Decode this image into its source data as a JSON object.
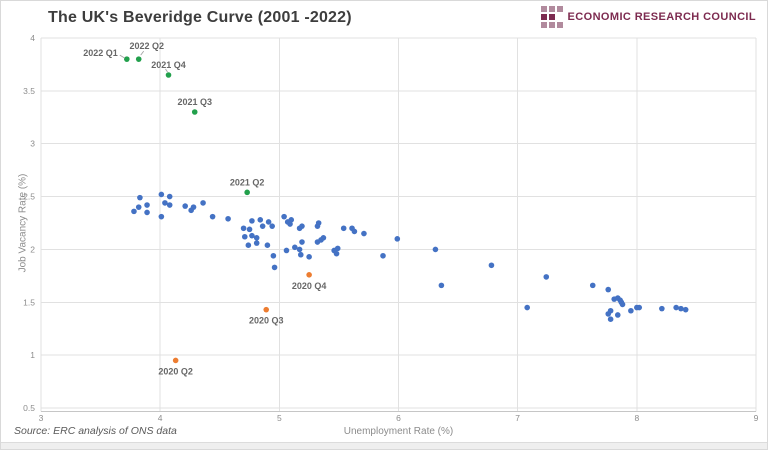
{
  "header": {
    "title": "The UK's Beveridge Curve (2001 -2022)",
    "logo_text": "ECONOMIC RESEARCH COUNCIL"
  },
  "source_note": "Source: ERC analysis of ONS data",
  "colors": {
    "blue": "#4472C4",
    "orange": "#ED7D31",
    "green": "#22A04C",
    "maroon": "#7D2B50",
    "grid": "#E1E1E1",
    "tick_text": "#8C8C8C",
    "title_text": "#3D3D3D"
  },
  "chart_data": {
    "type": "scatter",
    "title": "The UK's Beveridge Curve (2001 -2022)",
    "xlabel": "Unemployment Rate (%)",
    "ylabel": "Job Vacancy Rate (%)",
    "xlim": [
      3,
      9
    ],
    "ylim": [
      0.5,
      4
    ],
    "x_ticks": [
      3,
      4,
      5,
      6,
      7,
      8,
      9
    ],
    "y_ticks": [
      0.5,
      1,
      1.5,
      2,
      2.5,
      3,
      3.5,
      4
    ],
    "grid": true,
    "legend": false,
    "series": [
      {
        "name": "unlabeled-quarters",
        "color": "#4472C4",
        "marker_radius": 2.8,
        "points": [
          [
            3.83,
            2.49
          ],
          [
            4.01,
            2.52
          ],
          [
            4.08,
            2.5
          ],
          [
            4.04,
            2.44
          ],
          [
            4.08,
            2.42
          ],
          [
            3.82,
            2.4
          ],
          [
            3.89,
            2.42
          ],
          [
            3.78,
            2.36
          ],
          [
            3.89,
            2.35
          ],
          [
            4.21,
            2.41
          ],
          [
            4.28,
            2.4
          ],
          [
            4.36,
            2.44
          ],
          [
            4.26,
            2.37
          ],
          [
            4.01,
            2.31
          ],
          [
            4.44,
            2.31
          ],
          [
            4.57,
            2.29
          ],
          [
            4.77,
            2.27
          ],
          [
            4.84,
            2.28
          ],
          [
            4.91,
            2.26
          ],
          [
            4.7,
            2.2
          ],
          [
            4.75,
            2.19
          ],
          [
            4.86,
            2.22
          ],
          [
            4.94,
            2.22
          ],
          [
            4.71,
            2.12
          ],
          [
            4.77,
            2.13
          ],
          [
            4.81,
            2.11
          ],
          [
            4.74,
            2.04
          ],
          [
            4.81,
            2.06
          ],
          [
            4.9,
            2.04
          ],
          [
            4.95,
            1.94
          ],
          [
            5.04,
            2.31
          ],
          [
            5.07,
            2.26
          ],
          [
            5.1,
            2.28
          ],
          [
            5.09,
            2.24
          ],
          [
            5.17,
            2.2
          ],
          [
            5.19,
            2.22
          ],
          [
            5.06,
            1.99
          ],
          [
            5.13,
            2.02
          ],
          [
            5.19,
            2.07
          ],
          [
            5.17,
            2.0
          ],
          [
            5.18,
            1.95
          ],
          [
            5.25,
            1.93
          ],
          [
            5.32,
            2.22
          ],
          [
            5.33,
            2.25
          ],
          [
            5.32,
            2.07
          ],
          [
            5.35,
            2.09
          ],
          [
            5.37,
            2.11
          ],
          [
            5.46,
            1.99
          ],
          [
            5.48,
            1.96
          ],
          [
            5.49,
            2.01
          ],
          [
            5.54,
            2.2
          ],
          [
            5.61,
            2.2
          ],
          [
            5.63,
            2.17
          ],
          [
            5.71,
            2.15
          ],
          [
            5.87,
            1.94
          ],
          [
            5.99,
            2.1
          ],
          [
            4.96,
            1.83
          ],
          [
            6.31,
            2.0
          ],
          [
            6.36,
            1.66
          ],
          [
            6.78,
            1.85
          ],
          [
            7.08,
            1.45
          ],
          [
            7.24,
            1.74
          ],
          [
            7.63,
            1.66
          ],
          [
            7.76,
            1.62
          ],
          [
            7.81,
            1.53
          ],
          [
            7.84,
            1.54
          ],
          [
            7.86,
            1.52
          ],
          [
            7.87,
            1.5
          ],
          [
            7.88,
            1.48
          ],
          [
            7.78,
            1.42
          ],
          [
            7.76,
            1.39
          ],
          [
            7.78,
            1.34
          ],
          [
            7.84,
            1.38
          ],
          [
            7.95,
            1.42
          ],
          [
            8.0,
            1.45
          ],
          [
            8.02,
            1.45
          ],
          [
            8.21,
            1.44
          ],
          [
            8.33,
            1.45
          ],
          [
            8.37,
            1.44
          ],
          [
            8.41,
            1.43
          ]
        ]
      },
      {
        "name": "2020-quarters",
        "color": "#ED7D31",
        "marker_radius": 2.8,
        "labeled_points": [
          {
            "label": "2020 Q2",
            "x": 4.13,
            "y": 0.95,
            "label_pos": "below"
          },
          {
            "label": "2020 Q3",
            "x": 4.89,
            "y": 1.43,
            "label_pos": "below"
          },
          {
            "label": "2020 Q4",
            "x": 5.25,
            "y": 1.76,
            "label_pos": "below"
          }
        ]
      },
      {
        "name": "2021-2022-quarters",
        "color": "#22A04C",
        "marker_radius": 2.8,
        "labeled_points": [
          {
            "label": "2021 Q2",
            "x": 4.73,
            "y": 2.54,
            "label_pos": "above"
          },
          {
            "label": "2021 Q3",
            "x": 4.29,
            "y": 3.3,
            "label_pos": "above"
          },
          {
            "label": "2021 Q4",
            "x": 4.07,
            "y": 3.65,
            "label_pos": "above",
            "leader": true
          },
          {
            "label": "2022 Q1",
            "x": 3.72,
            "y": 3.8,
            "label_pos": "left",
            "leader": true
          },
          {
            "label": "2022 Q2",
            "x": 3.82,
            "y": 3.8,
            "label_pos": "above_right",
            "leader": true
          }
        ]
      }
    ]
  }
}
